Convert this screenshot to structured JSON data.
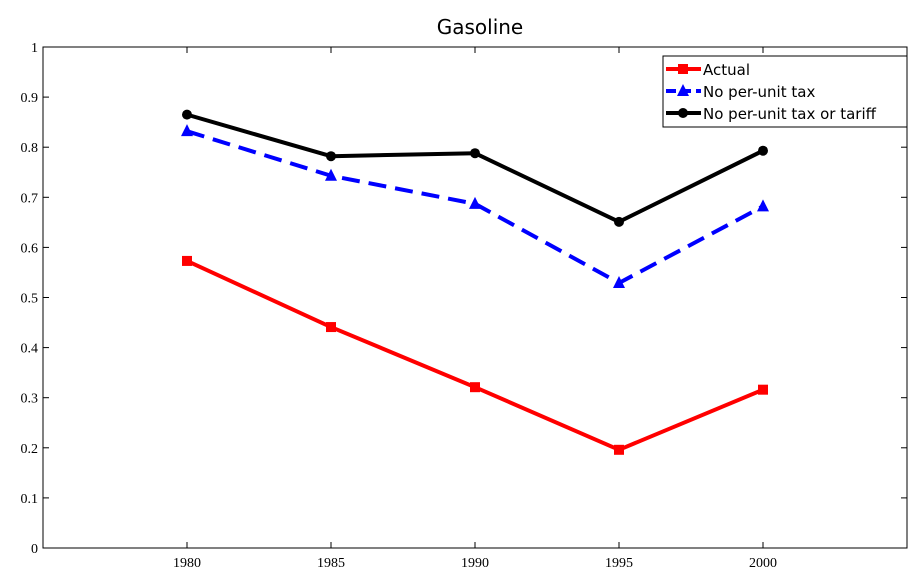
{
  "chart_data": {
    "type": "line",
    "title": "Gasoline",
    "xlabel": "",
    "ylabel": "",
    "x": [
      1980,
      1985,
      1990,
      1995,
      2000
    ],
    "xlim": [
      1975,
      2005
    ],
    "ylim": [
      0,
      1
    ],
    "xticks": [
      "1980",
      "1985",
      "1990",
      "1995",
      "2000"
    ],
    "yticks": [
      "0",
      "0.1",
      "0.2",
      "0.3",
      "0.4",
      "0.5",
      "0.6",
      "0.7",
      "0.8",
      "0.9",
      "1"
    ],
    "grid": false,
    "legend_position": "top-right",
    "series": [
      {
        "name": "Actual",
        "values": [
          0.573,
          0.441,
          0.321,
          0.196,
          0.316
        ],
        "color": "#ff0000",
        "line_style": "solid",
        "marker": "square"
      },
      {
        "name": "No per-unit tax",
        "values": [
          0.832,
          0.743,
          0.687,
          0.529,
          0.682
        ],
        "color": "#0000ff",
        "line_style": "dashed",
        "marker": "triangle"
      },
      {
        "name": "No per-unit tax or tariff",
        "values": [
          0.865,
          0.782,
          0.788,
          0.651,
          0.793
        ],
        "color": "#000000",
        "line_style": "solid",
        "marker": "circle"
      }
    ]
  }
}
